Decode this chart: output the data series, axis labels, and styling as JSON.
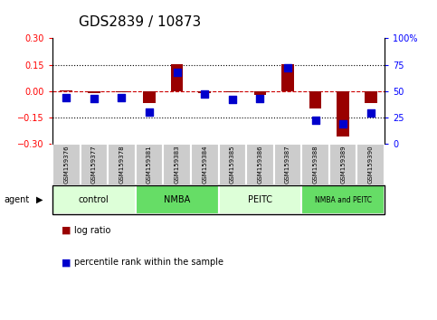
{
  "title": "GDS2839 / 10873",
  "samples": [
    "GSM159376",
    "GSM159377",
    "GSM159378",
    "GSM159381",
    "GSM159383",
    "GSM159384",
    "GSM159385",
    "GSM159386",
    "GSM159387",
    "GSM159388",
    "GSM159389",
    "GSM159390"
  ],
  "log_ratio": [
    0.005,
    -0.01,
    -0.008,
    -0.07,
    0.155,
    -0.01,
    -0.008,
    -0.02,
    0.155,
    -0.1,
    -0.26,
    -0.07
  ],
  "percentile_rank": [
    44,
    43,
    44,
    30,
    68,
    47,
    42,
    43,
    72,
    22,
    19,
    29
  ],
  "ylim_left": [
    -0.3,
    0.3
  ],
  "ylim_right": [
    0,
    100
  ],
  "yticks_left": [
    -0.3,
    -0.15,
    0.0,
    0.15,
    0.3
  ],
  "yticks_right": [
    0,
    25,
    50,
    75,
    100
  ],
  "groups": [
    {
      "label": "control",
      "start": 0,
      "end": 3,
      "color": "#ddffd8"
    },
    {
      "label": "NMBA",
      "start": 3,
      "end": 6,
      "color": "#66dd66"
    },
    {
      "label": "PEITC",
      "start": 6,
      "end": 9,
      "color": "#ddffd8"
    },
    {
      "label": "NMBA and PEITC",
      "start": 9,
      "end": 12,
      "color": "#66dd66"
    }
  ],
  "bar_color": "#990000",
  "dot_color": "#0000cc",
  "zero_line_color": "#cc0000",
  "sample_box_color": "#cccccc",
  "sample_box_edge": "#aaaaaa",
  "legend_bar_label": "log ratio",
  "legend_dot_label": "percentile rank within the sample",
  "bar_width": 0.45,
  "dot_size": 30,
  "title_fontsize": 11
}
